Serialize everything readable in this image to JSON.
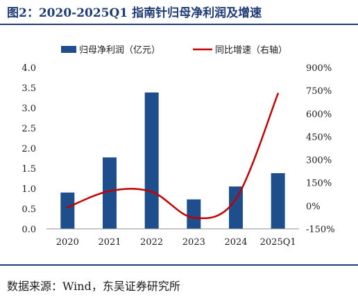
{
  "title": "图2：2020-2025Q1 指南针归母净利润及增速",
  "source": "数据来源：Wind，东吴证券研究所",
  "colors": {
    "bar": "#1f4e8c",
    "line": "#c00000",
    "rule": "#1f3b73"
  },
  "chart_data": {
    "type": "bar",
    "categories": [
      "2020",
      "2021",
      "2022",
      "2023",
      "2024",
      "2025Q1"
    ],
    "series": [
      {
        "name": "归母净利润（亿元）",
        "type": "bar",
        "axis": "left",
        "values": [
          0.9,
          1.77,
          3.38,
          0.73,
          1.05,
          1.38
        ]
      },
      {
        "name": "同比增速（右轴）",
        "type": "line",
        "axis": "right",
        "values": [
          -0.1,
          0.96,
          0.91,
          -0.78,
          0.44,
          7.3
        ]
      }
    ],
    "y_left": {
      "min": 0,
      "max": 4.0,
      "ticks": [
        "0.0",
        "0.5",
        "1.0",
        "1.5",
        "2.0",
        "2.5",
        "3.0",
        "3.5",
        "4.0"
      ]
    },
    "y_right": {
      "min": -1.5,
      "max": 9.0,
      "ticks": [
        "-150%",
        "0%",
        "150%",
        "300%",
        "450%",
        "600%",
        "750%",
        "900%"
      ]
    },
    "legend_position": "top"
  }
}
